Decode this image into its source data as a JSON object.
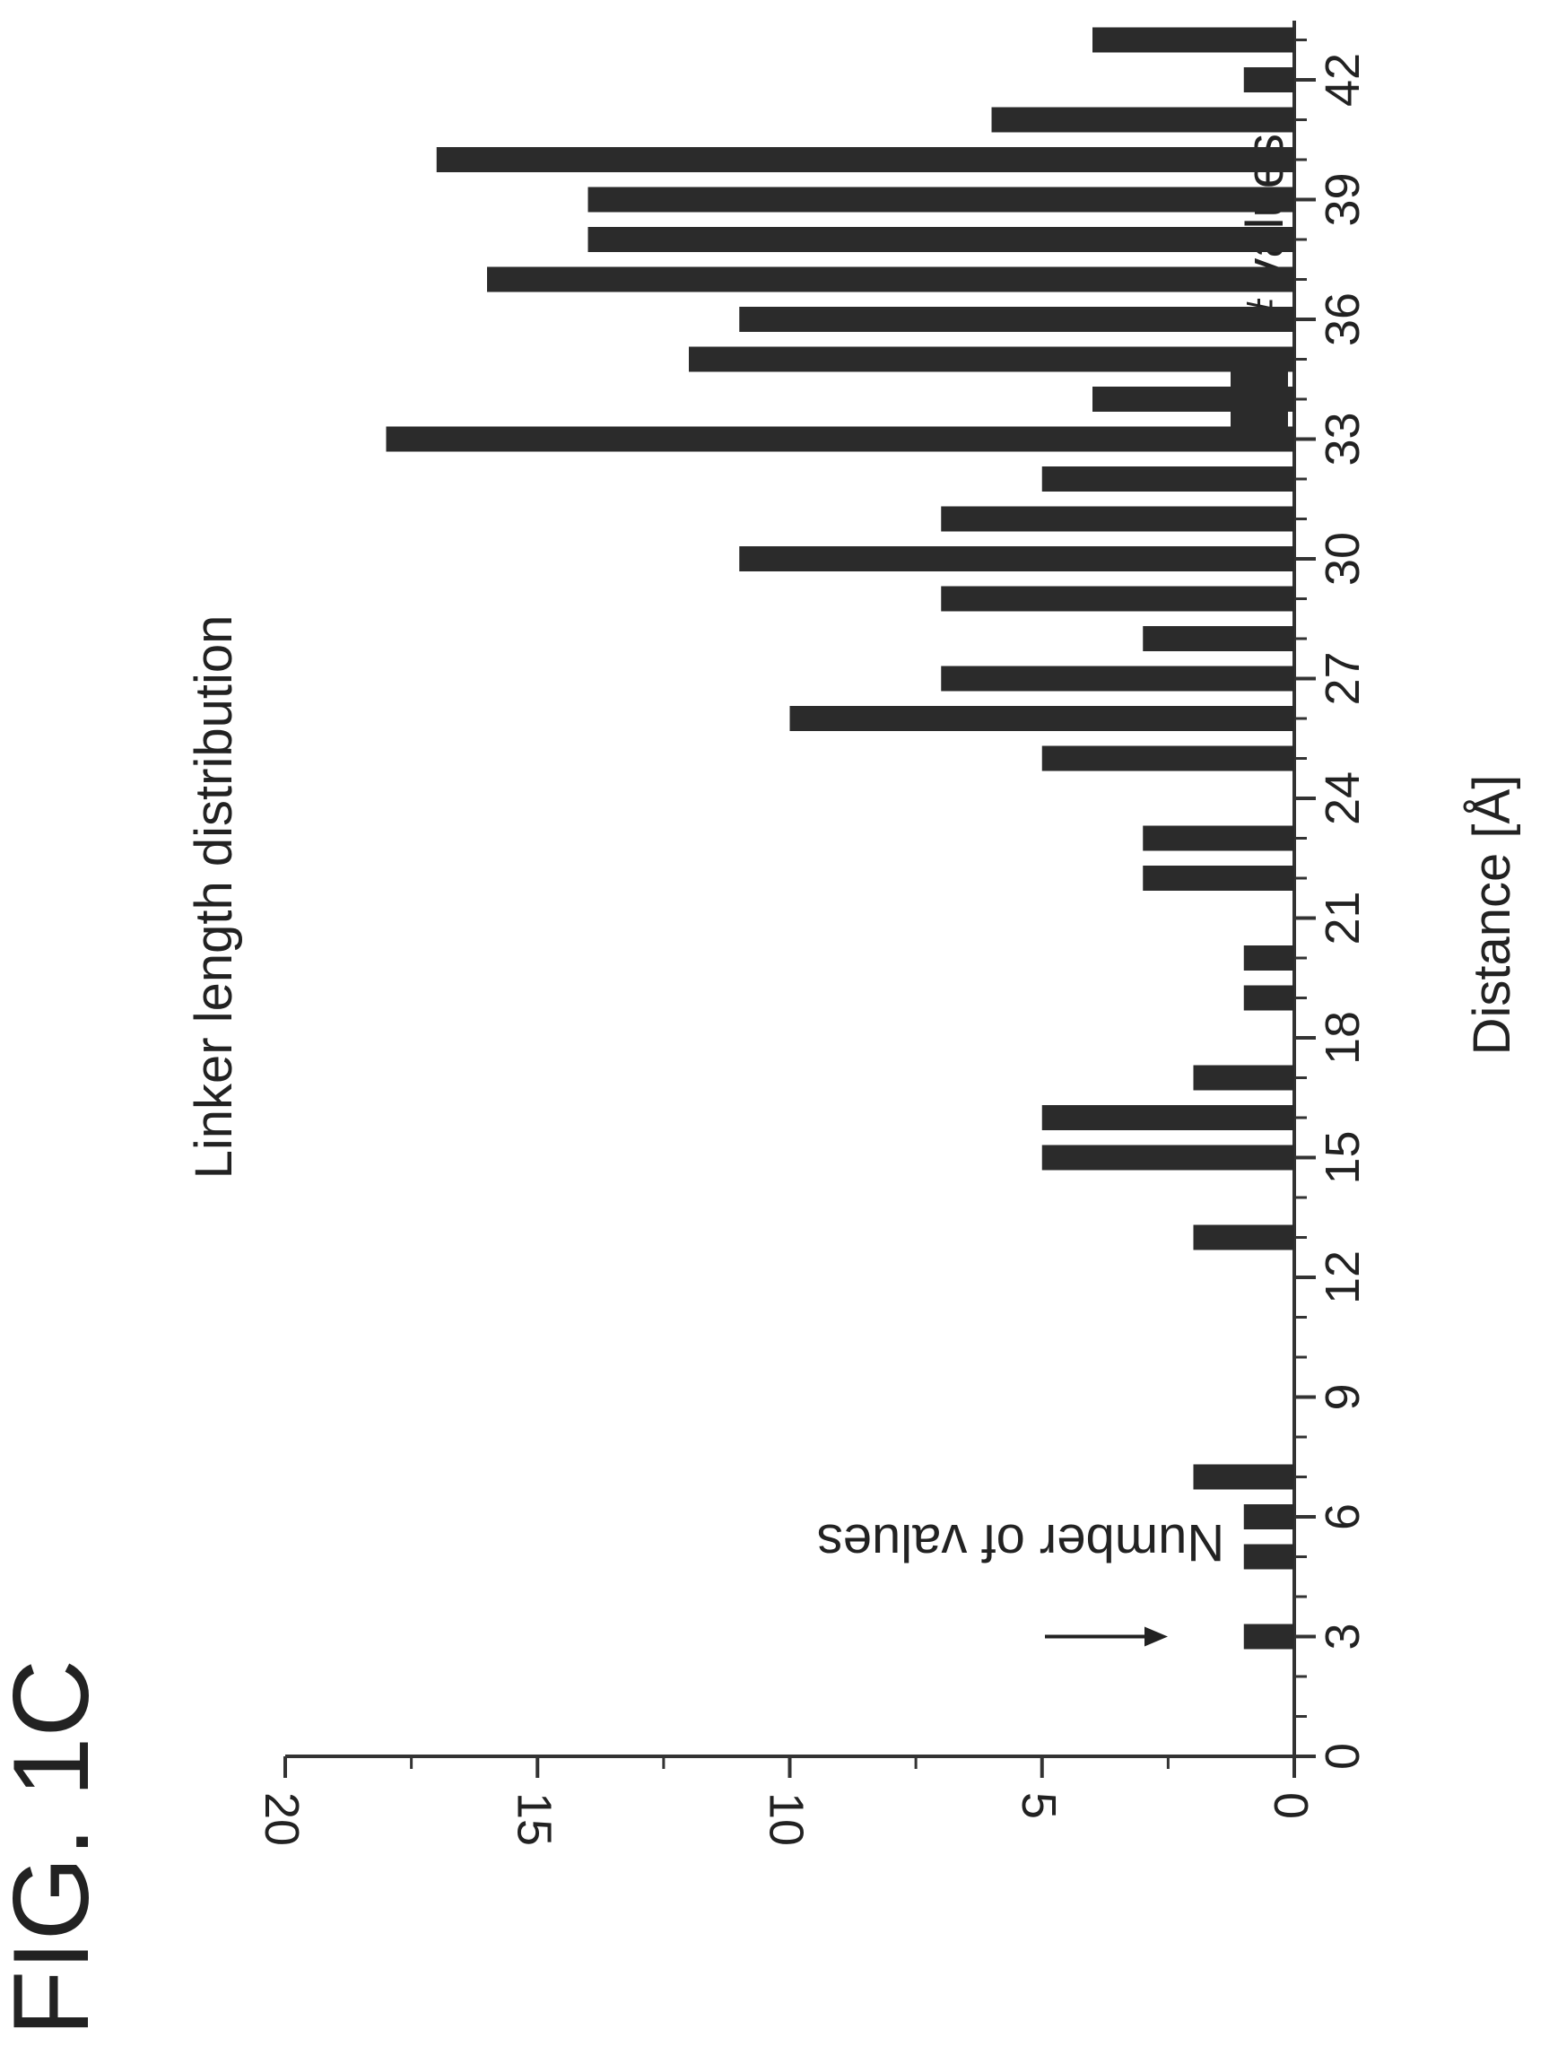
{
  "figure_label": "FIG. 1C",
  "colors": {
    "bar": "#2b2b2b",
    "axis": "#333333",
    "text": "#222222",
    "background": "#ffffff"
  },
  "chart_data": {
    "type": "bar",
    "orientation": "vertical, rotated 90 degrees clockwise on the page",
    "title": "Linker length distribution",
    "xlabel": "Distance [Å]",
    "ylabel": "Number of values",
    "legend": [
      "# values"
    ],
    "legend_position": "top-right",
    "grid": false,
    "xlim": [
      0,
      43
    ],
    "ylim": [
      0,
      20
    ],
    "x_ticks": [
      0,
      3,
      6,
      9,
      12,
      15,
      18,
      21,
      24,
      27,
      30,
      33,
      36,
      39,
      42
    ],
    "y_ticks": [
      0,
      5,
      10,
      15,
      20
    ],
    "annotation": {
      "type": "arrow",
      "points_to_x": 3
    },
    "series": [
      {
        "name": "# values",
        "x": [
          3,
          5,
          6,
          7,
          13,
          15,
          16,
          17,
          19,
          20,
          22,
          23,
          25,
          26,
          27,
          28,
          29,
          30,
          31,
          32,
          33,
          34,
          35,
          36,
          37,
          38,
          39,
          40,
          41,
          42,
          43
        ],
        "values": [
          1,
          1,
          1,
          2,
          2,
          5,
          5,
          2,
          1,
          1,
          3,
          3,
          5,
          10,
          7,
          3,
          7,
          11,
          7,
          5,
          18,
          4,
          12,
          11,
          16,
          14,
          14,
          17,
          6,
          1,
          4
        ]
      }
    ]
  }
}
